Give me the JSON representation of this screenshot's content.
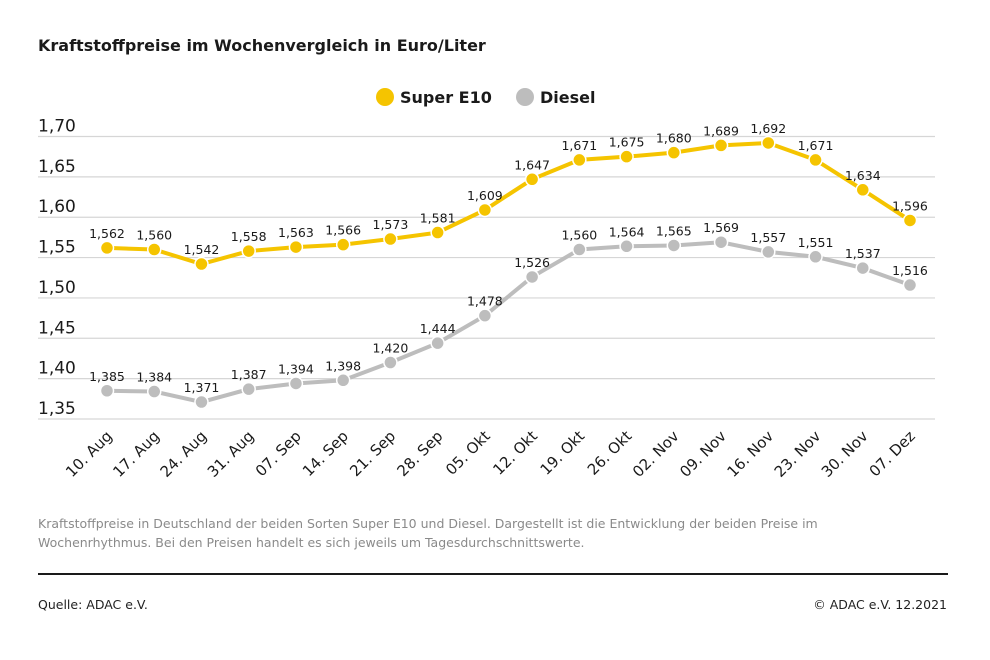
{
  "title": "Kraftstoffpreise im Wochenvergleich in Euro/Liter",
  "caption": "Kraftstoffpreise in Deutschland der beiden Sorten Super E10 und Diesel. Dargestellt ist die Entwicklung der beiden Preise im Wochenrhythmus. Bei den Preisen handelt es sich jeweils um Tagesdurchschnittswerte.",
  "source": "Quelle: ADAC e.V.",
  "copyright": "© ADAC e.V. 12.2021",
  "chart_data": {
    "type": "line",
    "title": "Kraftstoffpreise im Wochenvergleich in Euro/Liter",
    "xlabel": "",
    "ylabel": "",
    "ylim": [
      1.35,
      1.7
    ],
    "yticks": [
      1.7,
      1.65,
      1.6,
      1.55,
      1.5,
      1.45,
      1.4,
      1.35
    ],
    "ytick_labels": [
      "1,70",
      "1,65",
      "1,60",
      "1,55",
      "1,50",
      "1,45",
      "1,40",
      "1,35"
    ],
    "grid": true,
    "legend_position": "top-center",
    "categories": [
      "10. Aug",
      "17. Aug",
      "24. Aug",
      "31. Aug",
      "07. Sep",
      "14. Sep",
      "21. Sep",
      "28. Sep",
      "05. Okt",
      "12. Okt",
      "19. Okt",
      "26. Okt",
      "02. Nov",
      "09. Nov",
      "16. Nov",
      "23. Nov",
      "30. Nov",
      "07. Dez"
    ],
    "series": [
      {
        "name": "Super E10",
        "color": "#f5c400",
        "values": [
          1.562,
          1.56,
          1.542,
          1.558,
          1.563,
          1.566,
          1.573,
          1.581,
          1.609,
          1.647,
          1.671,
          1.675,
          1.68,
          1.689,
          1.692,
          1.671,
          1.634,
          1.596
        ],
        "labels": [
          "1,562",
          "1,560",
          "1,542",
          "1,558",
          "1,563",
          "1,566",
          "1,573",
          "1,581",
          "1,609",
          "1,647",
          "1,671",
          "1,675",
          "1,680",
          "1,689",
          "1,692",
          "1,671",
          "1,634",
          "1,596"
        ]
      },
      {
        "name": "Diesel",
        "color": "#bdbdbd",
        "values": [
          1.385,
          1.384,
          1.371,
          1.387,
          1.394,
          1.398,
          1.42,
          1.444,
          1.478,
          1.526,
          1.56,
          1.564,
          1.565,
          1.569,
          1.557,
          1.551,
          1.537,
          1.516
        ],
        "labels": [
          "1,385",
          "1,384",
          "1,371",
          "1,387",
          "1,394",
          "1,398",
          "1,420",
          "1,444",
          "1,478",
          "1,526",
          "1,560",
          "1,564",
          "1,565",
          "1,569",
          "1,557",
          "1,551",
          "1,537",
          "1,516"
        ]
      }
    ]
  }
}
